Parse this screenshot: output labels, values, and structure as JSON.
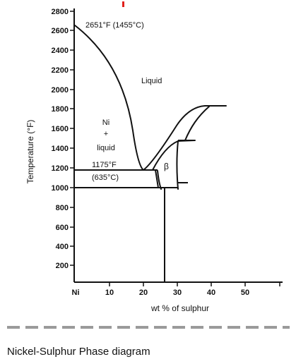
{
  "y_ticks": [
    "2800",
    "2600",
    "2400",
    "2200",
    "2000",
    "1800",
    "1600",
    "1400",
    "1200",
    "1000",
    "800",
    "600",
    "400",
    "200"
  ],
  "x_ticks": [
    "Ni",
    "10",
    "20",
    "30",
    "40",
    "50"
  ],
  "y_axis_label": "Temperature (°F)",
  "x_axis_label": "wt % of sulphur",
  "labels": {
    "ni_melting": "2651°F (1455°C)",
    "liquid": "Liquid",
    "ni_plus_liquid_1": "Ni",
    "ni_plus_liquid_2": "+",
    "ni_plus_liquid_3": "liquid",
    "eutectic_f": "1175°F",
    "eutectic_c": "(635°C)",
    "beta": "β"
  },
  "caption": "Nickel-Sulphur Phase diagram"
}
